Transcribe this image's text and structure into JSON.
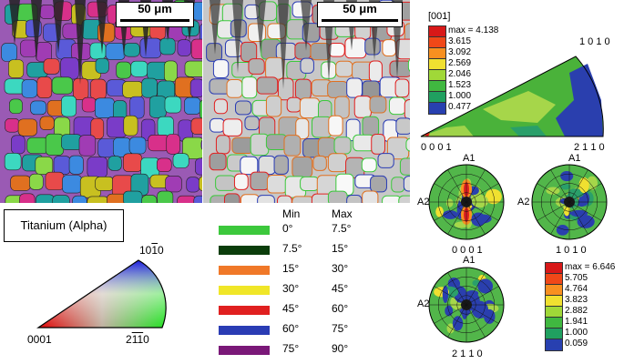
{
  "scale_bars": {
    "left": "50 μm",
    "right": "50 μm"
  },
  "phase": "Titanium (Alpha)",
  "ipf_key": {
    "top_label": "10",
    "top_overline": "1",
    "top_end": "0",
    "left_label": "0001",
    "right_label": "2",
    "right_over": "11",
    "right_end": "0"
  },
  "boundary_legend": {
    "min_header": "Min",
    "max_header": "Max",
    "rows": [
      {
        "color": "#3cc83c",
        "min": "0°",
        "max": "7.5°"
      },
      {
        "color": "#0b3d0b",
        "min": "7.5°",
        "max": "15°"
      },
      {
        "color": "#f07828",
        "min": "15°",
        "max": "30°"
      },
      {
        "color": "#f0e628",
        "min": "30°",
        "max": "45°"
      },
      {
        "color": "#e02020",
        "min": "45°",
        "max": "60°"
      },
      {
        "color": "#2a3cb4",
        "min": "60°",
        "max": "75°"
      },
      {
        "color": "#7a1878",
        "min": "75°",
        "max": "90°"
      }
    ]
  },
  "ipf_density": {
    "direction": "[001]",
    "values": [
      "max = 4.138",
      "3.615",
      "3.092",
      "2.569",
      "2.046",
      "1.523",
      "1.000",
      "0.477"
    ],
    "colors": [
      "#d81818",
      "#f04818",
      "#f89020",
      "#f0e030",
      "#a0d838",
      "#40b840",
      "#20a060",
      "#2840b0"
    ],
    "corner_top": "1 0 1 0",
    "corner_top_over_index": 2,
    "corner_left": "0 0 0 1",
    "corner_right": "2 1 1 0"
  },
  "pole_figures": {
    "pf1": {
      "top": "A1",
      "left": "A2",
      "bottom": "0 0 0 1"
    },
    "pf2": {
      "top": "A1",
      "left": "A2",
      "bottom": "1 0 1 0"
    },
    "pf3": {
      "top": "A1",
      "left": "A2",
      "bottom": "2 1 1 0"
    }
  },
  "pf_density": {
    "values": [
      "max = 6.646",
      "5.705",
      "4.764",
      "3.823",
      "2.882",
      "1.941",
      "1.000",
      "0.059"
    ],
    "colors": [
      "#d81818",
      "#f04818",
      "#f89020",
      "#f0e030",
      "#a0d838",
      "#40b840",
      "#20a060",
      "#2840b0"
    ]
  }
}
